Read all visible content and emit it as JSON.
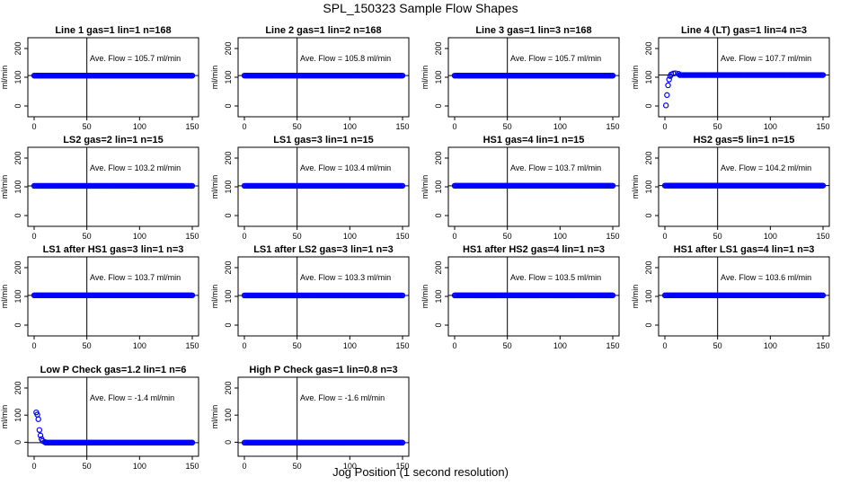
{
  "figure": {
    "title": "SPL_150323  Sample Flow Shapes",
    "xlabel": "Jog Position (1 second resolution)",
    "point_color": "#0000ff",
    "annotation_prefix": "Ave. Flow = ",
    "annotation_unit": "ml/min"
  },
  "chart_data": [
    {
      "type": "scatter",
      "title": "Line 1 gas=1 lin=1 n=168",
      "ylabel": "ml/min",
      "xlim": [
        0,
        150
      ],
      "ylim": [
        0,
        200
      ],
      "xticks": [
        0,
        50,
        100,
        150
      ],
      "yticks": [
        0,
        100,
        200
      ],
      "avg_flow": "105.7",
      "hline": 105.7,
      "vline": 50,
      "shape": "flat",
      "level": 105.7,
      "x": [
        0,
        150
      ]
    },
    {
      "type": "scatter",
      "title": "Line 2 gas=1 lin=2 n=168",
      "ylabel": "ml/min",
      "xlim": [
        0,
        150
      ],
      "ylim": [
        0,
        200
      ],
      "xticks": [
        0,
        50,
        100,
        150
      ],
      "yticks": [
        0,
        100,
        200
      ],
      "avg_flow": "105.8",
      "hline": 105.8,
      "vline": 50,
      "shape": "flat",
      "level": 105.8,
      "x": [
        0,
        150
      ]
    },
    {
      "type": "scatter",
      "title": "Line 3 gas=1 lin=3 n=168",
      "ylabel": "ml/min",
      "xlim": [
        0,
        150
      ],
      "ylim": [
        0,
        200
      ],
      "xticks": [
        0,
        50,
        100,
        150
      ],
      "yticks": [
        0,
        100,
        200
      ],
      "avg_flow": "105.7",
      "hline": 105.7,
      "vline": 50,
      "shape": "flat",
      "level": 105.7,
      "x": [
        0,
        150
      ]
    },
    {
      "type": "scatter",
      "title": "Line 4 (LT) gas=1 lin=4 n=3",
      "ylabel": "ml/min",
      "xlim": [
        0,
        150
      ],
      "ylim": [
        0,
        200
      ],
      "xticks": [
        0,
        50,
        100,
        150
      ],
      "yticks": [
        0,
        100,
        200
      ],
      "avg_flow": "107.7",
      "hline": 107.7,
      "vline": 50,
      "shape": "rise",
      "level": 107.7,
      "x": [
        0,
        150
      ],
      "rise_points": [
        [
          1,
          2
        ],
        [
          2,
          38
        ],
        [
          3,
          72
        ],
        [
          4,
          92
        ],
        [
          5,
          104
        ],
        [
          6,
          110
        ],
        [
          8,
          113
        ],
        [
          10,
          114
        ],
        [
          13,
          112
        ]
      ]
    },
    {
      "type": "scatter",
      "title": "LS2 gas=2 lin=1 n=15",
      "ylabel": "ml/min",
      "xlim": [
        0,
        150
      ],
      "ylim": [
        0,
        200
      ],
      "xticks": [
        0,
        50,
        100,
        150
      ],
      "yticks": [
        0,
        100,
        200
      ],
      "avg_flow": "103.2",
      "hline": 103.2,
      "vline": 50,
      "shape": "flat",
      "level": 103.2,
      "x": [
        0,
        150
      ]
    },
    {
      "type": "scatter",
      "title": "LS1 gas=3 lin=1 n=15",
      "ylabel": "ml/min",
      "xlim": [
        0,
        150
      ],
      "ylim": [
        0,
        200
      ],
      "xticks": [
        0,
        50,
        100,
        150
      ],
      "yticks": [
        0,
        100,
        200
      ],
      "avg_flow": "103.4",
      "hline": 103.4,
      "vline": 50,
      "shape": "flat",
      "level": 103.4,
      "x": [
        0,
        150
      ]
    },
    {
      "type": "scatter",
      "title": "HS1 gas=4 lin=1 n=15",
      "ylabel": "ml/min",
      "xlim": [
        0,
        150
      ],
      "ylim": [
        0,
        200
      ],
      "xticks": [
        0,
        50,
        100,
        150
      ],
      "yticks": [
        0,
        100,
        200
      ],
      "avg_flow": "103.7",
      "hline": 103.7,
      "vline": 50,
      "shape": "flat",
      "level": 103.7,
      "x": [
        0,
        150
      ]
    },
    {
      "type": "scatter",
      "title": "HS2 gas=5 lin=1 n=15",
      "ylabel": "ml/min",
      "xlim": [
        0,
        150
      ],
      "ylim": [
        0,
        200
      ],
      "xticks": [
        0,
        50,
        100,
        150
      ],
      "yticks": [
        0,
        100,
        200
      ],
      "avg_flow": "104.2",
      "hline": 104.2,
      "vline": 50,
      "shape": "flat",
      "level": 104.2,
      "x": [
        0,
        150
      ]
    },
    {
      "type": "scatter",
      "title": "LS1 after HS1 gas=3 lin=1 n=3",
      "ylabel": "ml/min",
      "xlim": [
        0,
        150
      ],
      "ylim": [
        0,
        200
      ],
      "xticks": [
        0,
        50,
        100,
        150
      ],
      "yticks": [
        0,
        100,
        200
      ],
      "avg_flow": "103.7",
      "hline": 103.7,
      "vline": 50,
      "shape": "flat",
      "level": 103.7,
      "x": [
        0,
        150
      ]
    },
    {
      "type": "scatter",
      "title": "LS1 after LS2 gas=3 lin=1 n=3",
      "ylabel": "ml/min",
      "xlim": [
        0,
        150
      ],
      "ylim": [
        0,
        200
      ],
      "xticks": [
        0,
        50,
        100,
        150
      ],
      "yticks": [
        0,
        100,
        200
      ],
      "avg_flow": "103.3",
      "hline": 103.3,
      "vline": 50,
      "shape": "flat",
      "level": 103.3,
      "x": [
        0,
        150
      ]
    },
    {
      "type": "scatter",
      "title": "HS1 after HS2 gas=4 lin=1 n=3",
      "ylabel": "ml/min",
      "xlim": [
        0,
        150
      ],
      "ylim": [
        0,
        200
      ],
      "xticks": [
        0,
        50,
        100,
        150
      ],
      "yticks": [
        0,
        100,
        200
      ],
      "avg_flow": "103.5",
      "hline": 103.5,
      "vline": 50,
      "shape": "flat",
      "level": 103.5,
      "x": [
        0,
        150
      ]
    },
    {
      "type": "scatter",
      "title": "HS1 after LS1 gas=4 lin=1 n=3",
      "ylabel": "ml/min",
      "xlim": [
        0,
        150
      ],
      "ylim": [
        0,
        200
      ],
      "xticks": [
        0,
        50,
        100,
        150
      ],
      "yticks": [
        0,
        100,
        200
      ],
      "avg_flow": "103.6",
      "hline": 103.6,
      "vline": 50,
      "shape": "flat",
      "level": 103.6,
      "x": [
        0,
        150
      ]
    },
    {
      "type": "scatter",
      "title": "Low P Check gas=1.2 lin=1 n=6",
      "ylabel": "ml/min",
      "xlim": [
        0,
        150
      ],
      "ylim": [
        -10,
        200
      ],
      "xticks": [
        0,
        50,
        100,
        150
      ],
      "yticks": [
        0,
        100,
        200
      ],
      "avg_flow": "-1.4",
      "hline": -1.4,
      "vline": 50,
      "shape": "decay",
      "level": -1.4,
      "x": [
        0,
        150
      ],
      "decay_points": [
        [
          2,
          110
        ],
        [
          3,
          102
        ],
        [
          4,
          85
        ],
        [
          5,
          45
        ],
        [
          6,
          25
        ],
        [
          7,
          12
        ],
        [
          8,
          5
        ],
        [
          10,
          1
        ]
      ]
    },
    {
      "type": "scatter",
      "title": "High P Check gas=1 lin=0.8 n=3",
      "ylabel": "ml/min",
      "xlim": [
        0,
        150
      ],
      "ylim": [
        -10,
        200
      ],
      "xticks": [
        0,
        50,
        100,
        150
      ],
      "yticks": [
        0,
        100,
        200
      ],
      "avg_flow": "-1.6",
      "hline": -1.6,
      "vline": 50,
      "shape": "flat",
      "level": -1.6,
      "x": [
        0,
        150
      ]
    }
  ]
}
